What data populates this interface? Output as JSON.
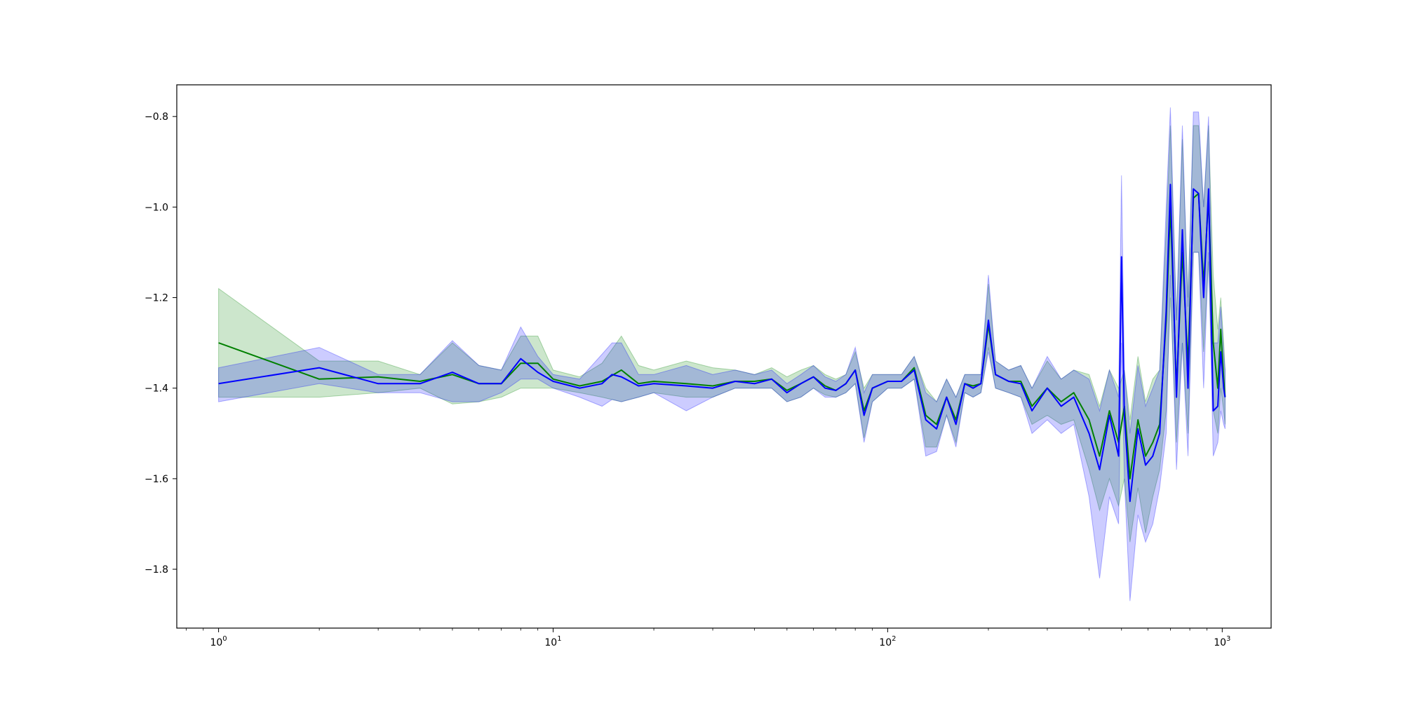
{
  "chart_data": {
    "type": "line",
    "title": "",
    "xlabel": "",
    "ylabel": "",
    "xscale": "log",
    "xlim": [
      0.75,
      1400
    ],
    "ylim": [
      -1.93,
      -0.73
    ],
    "grid": false,
    "x_ticks": [
      {
        "value": 1,
        "base": "10",
        "exp": "0"
      },
      {
        "value": 10,
        "base": "10",
        "exp": "1"
      },
      {
        "value": 100,
        "base": "10",
        "exp": "2"
      },
      {
        "value": 1000,
        "base": "10",
        "exp": "3"
      }
    ],
    "y_ticks": [
      {
        "value": -1.8,
        "label": "−1.8"
      },
      {
        "value": -1.6,
        "label": "−1.6"
      },
      {
        "value": -1.4,
        "label": "−1.4"
      },
      {
        "value": -1.2,
        "label": "−1.2"
      },
      {
        "value": -1.0,
        "label": "−1.0"
      },
      {
        "value": -0.8,
        "label": "−0.8"
      }
    ],
    "series": [
      {
        "color": "#008000",
        "band_color": "#008000",
        "band_opacity": 0.2,
        "points": [
          [
            1,
            -1.3,
            -1.42,
            -1.18
          ],
          [
            2,
            -1.38,
            -1.42,
            -1.34
          ],
          [
            3,
            -1.375,
            -1.41,
            -1.34
          ],
          [
            4,
            -1.385,
            -1.4,
            -1.37
          ],
          [
            5,
            -1.37,
            -1.435,
            -1.3
          ],
          [
            6,
            -1.39,
            -1.43,
            -1.35
          ],
          [
            7,
            -1.39,
            -1.42,
            -1.36
          ],
          [
            8,
            -1.345,
            -1.4,
            -1.285
          ],
          [
            9,
            -1.345,
            -1.4,
            -1.285
          ],
          [
            10,
            -1.38,
            -1.4,
            -1.36
          ],
          [
            12,
            -1.395,
            -1.41,
            -1.375
          ],
          [
            14,
            -1.385,
            -1.42,
            -1.345
          ],
          [
            16,
            -1.36,
            -1.43,
            -1.285
          ],
          [
            18,
            -1.39,
            -1.42,
            -1.35
          ],
          [
            20,
            -1.385,
            -1.41,
            -1.36
          ],
          [
            25,
            -1.39,
            -1.42,
            -1.34
          ],
          [
            30,
            -1.395,
            -1.42,
            -1.355
          ],
          [
            35,
            -1.385,
            -1.4,
            -1.36
          ],
          [
            40,
            -1.385,
            -1.4,
            -1.37
          ],
          [
            45,
            -1.38,
            -1.4,
            -1.355
          ],
          [
            50,
            -1.405,
            -1.43,
            -1.375
          ],
          [
            55,
            -1.39,
            -1.42,
            -1.36
          ],
          [
            60,
            -1.375,
            -1.4,
            -1.35
          ],
          [
            65,
            -1.395,
            -1.415,
            -1.37
          ],
          [
            70,
            -1.405,
            -1.42,
            -1.38
          ],
          [
            75,
            -1.39,
            -1.41,
            -1.37
          ],
          [
            80,
            -1.36,
            -1.39,
            -1.32
          ],
          [
            85,
            -1.45,
            -1.51,
            -1.4
          ],
          [
            90,
            -1.4,
            -1.43,
            -1.37
          ],
          [
            100,
            -1.385,
            -1.4,
            -1.37
          ],
          [
            110,
            -1.385,
            -1.4,
            -1.37
          ],
          [
            120,
            -1.355,
            -1.38,
            -1.33
          ],
          [
            130,
            -1.46,
            -1.53,
            -1.4
          ],
          [
            140,
            -1.48,
            -1.53,
            -1.43
          ],
          [
            150,
            -1.42,
            -1.46,
            -1.38
          ],
          [
            160,
            -1.47,
            -1.52,
            -1.42
          ],
          [
            170,
            -1.39,
            -1.41,
            -1.37
          ],
          [
            180,
            -1.395,
            -1.42,
            -1.37
          ],
          [
            190,
            -1.39,
            -1.41,
            -1.37
          ],
          [
            200,
            -1.26,
            -1.31,
            -1.17
          ],
          [
            210,
            -1.37,
            -1.4,
            -1.34
          ],
          [
            230,
            -1.385,
            -1.41,
            -1.36
          ],
          [
            250,
            -1.385,
            -1.42,
            -1.35
          ],
          [
            270,
            -1.44,
            -1.48,
            -1.4
          ],
          [
            300,
            -1.4,
            -1.46,
            -1.34
          ],
          [
            330,
            -1.43,
            -1.48,
            -1.38
          ],
          [
            360,
            -1.41,
            -1.47,
            -1.36
          ],
          [
            400,
            -1.47,
            -1.58,
            -1.37
          ],
          [
            430,
            -1.55,
            -1.67,
            -1.44
          ],
          [
            460,
            -1.45,
            -1.6,
            -1.36
          ],
          [
            490,
            -1.52,
            -1.66,
            -1.4
          ],
          [
            510,
            -1.44,
            -1.6,
            -1.36
          ],
          [
            530,
            -1.6,
            -1.74,
            -1.47
          ],
          [
            560,
            -1.47,
            -1.62,
            -1.33
          ],
          [
            590,
            -1.55,
            -1.72,
            -1.43
          ],
          [
            620,
            -1.52,
            -1.64,
            -1.38
          ],
          [
            650,
            -1.48,
            -1.58,
            -1.36
          ],
          [
            680,
            -1.25,
            -1.45,
            -1.05
          ],
          [
            700,
            -1.0,
            -1.2,
            -0.82
          ],
          [
            730,
            -1.4,
            -1.52,
            -1.25
          ],
          [
            760,
            -1.1,
            -1.3,
            -0.85
          ],
          [
            790,
            -1.35,
            -1.5,
            -1.2
          ],
          [
            820,
            -0.98,
            -1.1,
            -0.82
          ],
          [
            850,
            -0.97,
            -1.1,
            -0.82
          ],
          [
            880,
            -1.17,
            -1.32,
            -1.0
          ],
          [
            910,
            -0.98,
            -1.12,
            -0.82
          ],
          [
            940,
            -1.3,
            -1.45,
            -1.15
          ],
          [
            970,
            -1.4,
            -1.5,
            -1.27
          ],
          [
            990,
            -1.27,
            -1.4,
            -1.2
          ],
          [
            1010,
            -1.38,
            -1.45,
            -1.3
          ],
          [
            1020,
            -1.42,
            -1.48,
            -1.36
          ]
        ]
      },
      {
        "color": "#0000ff",
        "band_color": "#0000ff",
        "band_opacity": 0.2,
        "points": [
          [
            1,
            -1.39,
            -1.43,
            -1.355
          ],
          [
            2,
            -1.355,
            -1.39,
            -1.31
          ],
          [
            3,
            -1.39,
            -1.41,
            -1.37
          ],
          [
            4,
            -1.39,
            -1.41,
            -1.37
          ],
          [
            5,
            -1.365,
            -1.43,
            -1.295
          ],
          [
            6,
            -1.39,
            -1.43,
            -1.35
          ],
          [
            7,
            -1.39,
            -1.41,
            -1.36
          ],
          [
            8,
            -1.335,
            -1.38,
            -1.265
          ],
          [
            9,
            -1.365,
            -1.38,
            -1.33
          ],
          [
            10,
            -1.385,
            -1.4,
            -1.37
          ],
          [
            12,
            -1.4,
            -1.42,
            -1.38
          ],
          [
            14,
            -1.39,
            -1.44,
            -1.325
          ],
          [
            15,
            -1.37,
            -1.425,
            -1.3
          ],
          [
            16,
            -1.375,
            -1.43,
            -1.3
          ],
          [
            18,
            -1.395,
            -1.42,
            -1.37
          ],
          [
            20,
            -1.39,
            -1.41,
            -1.37
          ],
          [
            25,
            -1.395,
            -1.45,
            -1.35
          ],
          [
            30,
            -1.4,
            -1.42,
            -1.37
          ],
          [
            35,
            -1.385,
            -1.4,
            -1.36
          ],
          [
            40,
            -1.39,
            -1.4,
            -1.37
          ],
          [
            45,
            -1.38,
            -1.4,
            -1.36
          ],
          [
            50,
            -1.41,
            -1.43,
            -1.39
          ],
          [
            55,
            -1.39,
            -1.42,
            -1.37
          ],
          [
            60,
            -1.375,
            -1.4,
            -1.35
          ],
          [
            65,
            -1.4,
            -1.42,
            -1.375
          ],
          [
            70,
            -1.405,
            -1.42,
            -1.385
          ],
          [
            75,
            -1.39,
            -1.41,
            -1.37
          ],
          [
            80,
            -1.36,
            -1.39,
            -1.31
          ],
          [
            85,
            -1.46,
            -1.52,
            -1.41
          ],
          [
            90,
            -1.4,
            -1.43,
            -1.37
          ],
          [
            100,
            -1.385,
            -1.4,
            -1.37
          ],
          [
            110,
            -1.385,
            -1.4,
            -1.37
          ],
          [
            120,
            -1.36,
            -1.38,
            -1.33
          ],
          [
            130,
            -1.47,
            -1.55,
            -1.41
          ],
          [
            140,
            -1.49,
            -1.54,
            -1.43
          ],
          [
            150,
            -1.42,
            -1.46,
            -1.38
          ],
          [
            160,
            -1.48,
            -1.53,
            -1.42
          ],
          [
            170,
            -1.39,
            -1.41,
            -1.37
          ],
          [
            180,
            -1.4,
            -1.42,
            -1.37
          ],
          [
            190,
            -1.39,
            -1.41,
            -1.37
          ],
          [
            200,
            -1.25,
            -1.32,
            -1.15
          ],
          [
            210,
            -1.37,
            -1.4,
            -1.34
          ],
          [
            230,
            -1.385,
            -1.41,
            -1.36
          ],
          [
            250,
            -1.39,
            -1.42,
            -1.35
          ],
          [
            270,
            -1.45,
            -1.5,
            -1.4
          ],
          [
            300,
            -1.4,
            -1.47,
            -1.33
          ],
          [
            330,
            -1.44,
            -1.5,
            -1.38
          ],
          [
            360,
            -1.42,
            -1.48,
            -1.36
          ],
          [
            400,
            -1.5,
            -1.64,
            -1.38
          ],
          [
            430,
            -1.58,
            -1.82,
            -1.45
          ],
          [
            460,
            -1.46,
            -1.64,
            -1.36
          ],
          [
            490,
            -1.55,
            -1.7,
            -1.42
          ],
          [
            500,
            -1.11,
            -1.3,
            -0.93
          ],
          [
            510,
            -1.46,
            -1.6,
            -1.36
          ],
          [
            530,
            -1.65,
            -1.87,
            -1.5
          ],
          [
            560,
            -1.49,
            -1.68,
            -1.35
          ],
          [
            590,
            -1.57,
            -1.74,
            -1.44
          ],
          [
            620,
            -1.55,
            -1.7,
            -1.4
          ],
          [
            650,
            -1.5,
            -1.62,
            -1.36
          ],
          [
            680,
            -1.23,
            -1.5,
            -1.0
          ],
          [
            700,
            -0.95,
            -1.15,
            -0.78
          ],
          [
            730,
            -1.42,
            -1.58,
            -1.25
          ],
          [
            760,
            -1.05,
            -1.3,
            -0.82
          ],
          [
            790,
            -1.4,
            -1.55,
            -1.22
          ],
          [
            820,
            -0.96,
            -1.1,
            -0.79
          ],
          [
            850,
            -0.97,
            -1.1,
            -0.79
          ],
          [
            880,
            -1.2,
            -1.4,
            -1.0
          ],
          [
            910,
            -0.96,
            -1.1,
            -0.8
          ],
          [
            940,
            -1.45,
            -1.55,
            -1.3
          ],
          [
            970,
            -1.44,
            -1.52,
            -1.3
          ],
          [
            990,
            -1.32,
            -1.45,
            -1.22
          ],
          [
            1010,
            -1.4,
            -1.48,
            -1.32
          ],
          [
            1020,
            -1.42,
            -1.49,
            -1.36
          ]
        ]
      }
    ]
  }
}
